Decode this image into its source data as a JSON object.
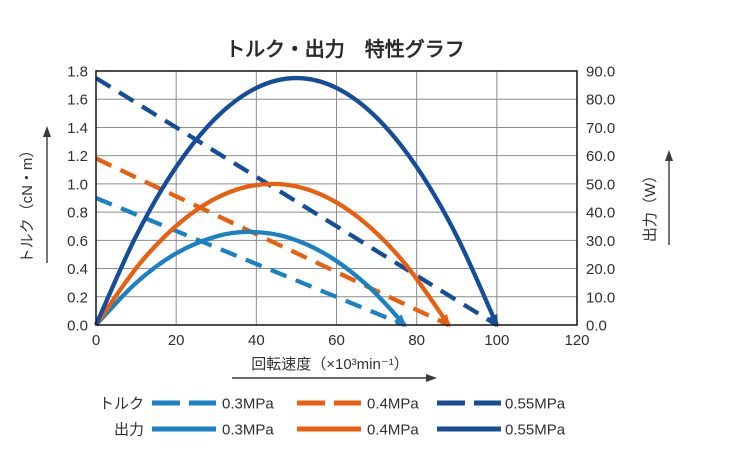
{
  "chart_data": {
    "type": "line",
    "title": "トルク・出力　特性グラフ",
    "x_axis": {
      "label": "回転速度（×10³min⁻¹）",
      "min": 0,
      "max": 120,
      "tick_step": 20,
      "ticks": [
        "0",
        "20",
        "40",
        "60",
        "80",
        "100",
        "120"
      ]
    },
    "y_left_axis": {
      "label": "トルク（cN・m）",
      "min": 0,
      "max": 1.8,
      "tick_step": 0.2,
      "ticks": [
        "0.0",
        "0.2",
        "0.4",
        "0.6",
        "0.8",
        "1.0",
        "1.2",
        "1.4",
        "1.6",
        "1.8"
      ]
    },
    "y_right_axis": {
      "label": "出力（W）",
      "min": 0,
      "max": 90,
      "tick_step": 10,
      "ticks": [
        "0.0",
        "10.0",
        "20.0",
        "30.0",
        "40.0",
        "50.0",
        "60.0",
        "70.0",
        "80.0",
        "90.0"
      ]
    },
    "grid": true,
    "legend_position": "bottom",
    "colors": {
      "blue_light": "#1A82C4",
      "orange": "#E8600F",
      "blue_dark": "#154D99"
    },
    "series": [
      {
        "name": "トルク 0.3MPa",
        "group": "トルク",
        "pressure": "0.3MPa",
        "axis": "left",
        "line": "dashed",
        "color": "#1A82C4",
        "points": [
          [
            0,
            0.9
          ],
          [
            77,
            0
          ]
        ]
      },
      {
        "name": "トルク 0.4MPa",
        "group": "トルク",
        "pressure": "0.4MPa",
        "axis": "left",
        "line": "dashed",
        "color": "#E8600F",
        "points": [
          [
            0,
            1.18
          ],
          [
            88,
            0
          ]
        ]
      },
      {
        "name": "トルク 0.55MPa",
        "group": "トルク",
        "pressure": "0.55MPa",
        "axis": "left",
        "line": "dashed",
        "color": "#154D99",
        "points": [
          [
            0,
            1.75
          ],
          [
            100,
            0
          ]
        ]
      },
      {
        "name": "出力 0.3MPa",
        "group": "出力",
        "pressure": "0.3MPa",
        "axis": "right",
        "line": "solid",
        "smooth": true,
        "arrow_end": true,
        "color": "#1A82C4",
        "points": [
          [
            0,
            0
          ],
          [
            10,
            14.9
          ],
          [
            20,
            25.4
          ],
          [
            30,
            31.4
          ],
          [
            38.5,
            33
          ],
          [
            48,
            31.0
          ],
          [
            58,
            24.5
          ],
          [
            68,
            13.6
          ],
          [
            77,
            0
          ]
        ]
      },
      {
        "name": "出力 0.4MPa",
        "group": "出力",
        "pressure": "0.4MPa",
        "axis": "right",
        "line": "solid",
        "smooth": true,
        "arrow_end": true,
        "color": "#E8600F",
        "points": [
          [
            0,
            0
          ],
          [
            11,
            21.9
          ],
          [
            22,
            37.5
          ],
          [
            33,
            46.9
          ],
          [
            44,
            50
          ],
          [
            55,
            46.9
          ],
          [
            66,
            37.5
          ],
          [
            77,
            21.9
          ],
          [
            88,
            0
          ]
        ]
      },
      {
        "name": "出力 0.55MPa",
        "group": "出力",
        "pressure": "0.55MPa",
        "axis": "right",
        "line": "solid",
        "smooth": true,
        "arrow_end": true,
        "color": "#154D99",
        "points": [
          [
            0,
            0
          ],
          [
            10,
            31.5
          ],
          [
            20,
            56.0
          ],
          [
            30,
            73.5
          ],
          [
            40,
            84.0
          ],
          [
            50,
            87.5
          ],
          [
            60,
            84.0
          ],
          [
            70,
            73.5
          ],
          [
            80,
            56.0
          ],
          [
            90,
            31.5
          ],
          [
            100,
            0
          ]
        ]
      }
    ],
    "legend": {
      "rows": [
        {
          "label": "トルク",
          "style": "dashed",
          "entries": [
            {
              "text": "0.3MPa",
              "color": "#1A82C4"
            },
            {
              "text": "0.4MPa",
              "color": "#E8600F"
            },
            {
              "text": "0.55MPa",
              "color": "#154D99"
            }
          ]
        },
        {
          "label": "出力",
          "style": "solid",
          "entries": [
            {
              "text": "0.3MPa",
              "color": "#1A82C4"
            },
            {
              "text": "0.4MPa",
              "color": "#E8600F"
            },
            {
              "text": "0.55MPa",
              "color": "#154D99"
            }
          ]
        }
      ]
    }
  }
}
